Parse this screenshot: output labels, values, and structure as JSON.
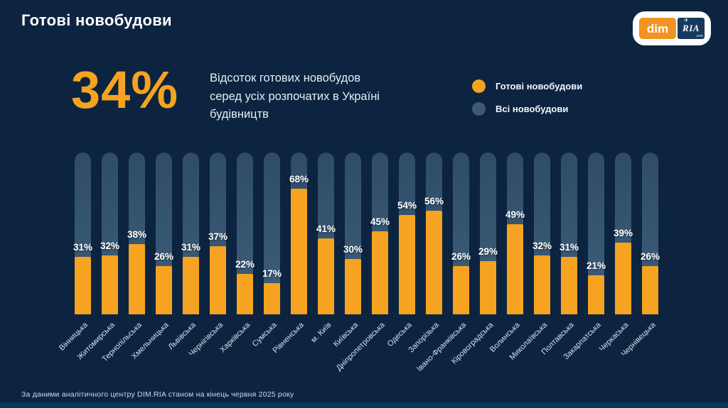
{
  "header": {
    "title": "Готові новобудови",
    "logo": {
      "dim": "dim",
      "ria": "RIA",
      "star": "✈",
      "com": ".com"
    }
  },
  "summary": {
    "big_value": "34%",
    "description_lines": [
      "Відсоток готових новобудов",
      "серед усіх розпочатих в Україні",
      "будівництв"
    ]
  },
  "legend": {
    "items": [
      {
        "label": "Готові новобудови",
        "color": "#f5a321"
      },
      {
        "label": "Всі новобудови",
        "color": "#3c5a74"
      }
    ]
  },
  "footer": {
    "source": "За даними аналітичного центру DIM.RIA станом на кінець червня 2025 року"
  },
  "colors": {
    "accent_orange": "#f5a321",
    "background_bar": "rgba(140,185,212,0.33)",
    "background_top": "#0c1a2e",
    "background_bottom": "#136080",
    "text_white": "#ffffff"
  },
  "chart_data": {
    "type": "bar",
    "title": "34% — Відсоток готових новобудов серед усіх розпочатих в Україні будівництв",
    "unit": "%",
    "ylim": [
      0,
      100
    ],
    "grid": false,
    "legend_position": "top-right",
    "legend": [
      "Готові новобудови",
      "Всі новобудови"
    ],
    "background_bars_note": "Повна висота стовпчика = Всі новобудови",
    "categories": [
      "Вінницька",
      "Житомирська",
      "Тернопільська",
      "Хмельницька",
      "Львівська",
      "Чернігівська",
      "Харківська",
      "Сумська",
      "Рівненська",
      "м. Київ",
      "Київська",
      "Дніпропетровська",
      "Одеська",
      "Запорізька",
      "Івано-Франківська",
      "Кіровоградська",
      "Волинська",
      "Миколаївська",
      "Полтавська",
      "Закарпатська",
      "Черкаська",
      "Чернівецька"
    ],
    "values": [
      31,
      32,
      38,
      26,
      31,
      37,
      22,
      17,
      68,
      41,
      30,
      45,
      54,
      56,
      26,
      29,
      49,
      32,
      31,
      21,
      39,
      26
    ]
  }
}
